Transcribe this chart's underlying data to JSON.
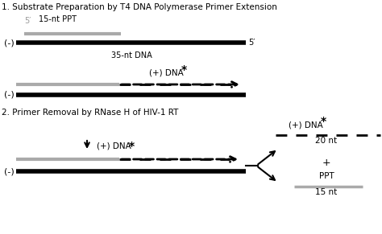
{
  "title1": "1. Substrate Preparation by T4 DNA Polymerase Primer Extension",
  "title2": "2. Primer Removal by RNase H of HIV-1 RT",
  "bg_color": "#ffffff",
  "gray_color": "#aaaaaa",
  "black_color": "#000000",
  "label_15nt_ppt": "15-nt PPT",
  "label_35nt_dna": "35-nt DNA",
  "label_plus_dna": "(+) DNA",
  "label_star": "*",
  "label_minus": "(-)",
  "label_5prime_gray": "5′",
  "label_5prime_black": "5′",
  "label_20nt": "20 nt",
  "label_plus_sign": "+",
  "label_ppt": "PPT",
  "label_15nt": "15 nt",
  "figw": 4.74,
  "figh": 2.91,
  "dpi": 100
}
